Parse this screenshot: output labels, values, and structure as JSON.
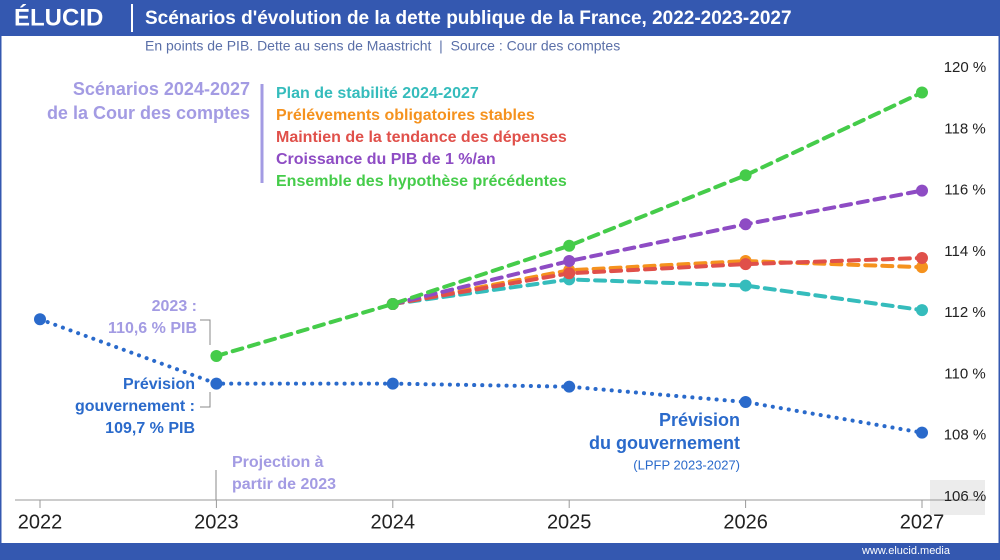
{
  "header": {
    "logo": "ÉLUCID"
  },
  "footer": {
    "url": "www.elucid.media"
  },
  "chart_data": {
    "type": "line",
    "title": "Scénarios d'évolution de la dette publique de la France, 2022-2023-2027",
    "subtitle": "En points de PIB. Dette au sens de Maastricht  |  Source : Cour des comptes",
    "x": [
      2022,
      2023,
      2024,
      2025,
      2026,
      2027
    ],
    "xlim": [
      2022,
      2027
    ],
    "xticks": [
      2022,
      2023,
      2024,
      2025,
      2026,
      2027
    ],
    "ylim": [
      106,
      120
    ],
    "yticks": [
      {
        "value": 106,
        "label": "106 %"
      },
      {
        "value": 108,
        "label": "108 %"
      },
      {
        "value": 110,
        "label": "110 %"
      },
      {
        "value": 112,
        "label": "112 %"
      },
      {
        "value": 114,
        "label": "114 %"
      },
      {
        "value": 116,
        "label": "116 %"
      },
      {
        "value": 118,
        "label": "118 %"
      },
      {
        "value": 120,
        "label": "120 %"
      }
    ],
    "forecast": {
      "color": "#2a6acb",
      "style": "dotted",
      "values": [
        111.8,
        109.7,
        109.7,
        109.6,
        109.1,
        108.1
      ]
    },
    "series": [
      {
        "name": "Plan de stabilité 2024-2027",
        "color": "#35bcbc",
        "style": "dashed",
        "values": [
          null,
          null,
          112.3,
          113.1,
          112.9,
          112.1
        ]
      },
      {
        "name": "Prélévements obligatoires stables",
        "color": "#f5921e",
        "style": "dashed",
        "values": [
          null,
          null,
          112.3,
          113.4,
          113.7,
          113.5
        ]
      },
      {
        "name": "Maintien de la tendance des dépenses",
        "color": "#e0504a",
        "style": "dashed",
        "values": [
          null,
          null,
          112.3,
          113.3,
          113.6,
          113.8
        ]
      },
      {
        "name": "Croissance du PIB de 1 %/an",
        "color": "#8e4cc4",
        "style": "dashed",
        "values": [
          null,
          null,
          112.3,
          113.7,
          114.9,
          116.0
        ]
      },
      {
        "name": "Ensemble des hypothèse précédentes",
        "color": "#45cc4a",
        "style": "dashed",
        "values": [
          null,
          110.6,
          112.3,
          114.2,
          116.5,
          119.2
        ]
      }
    ],
    "annotations": [
      {
        "lines": [
          "Scénarios 2024-2027",
          "de la Cour des comptes"
        ],
        "color": "#a39be3"
      },
      {
        "lines": [
          "2023 :",
          "110,6 % PIB"
        ],
        "color": "#a39be3"
      },
      {
        "lines": [
          "Prévision",
          "gouvernement :",
          "109,7 % PIB"
        ],
        "color": "#2a6acb"
      },
      {
        "lines": [
          "Projection à",
          "partir de 2023"
        ],
        "color": "#a39be3"
      },
      {
        "lines": [
          "Prévision",
          "du gouvernement"
        ],
        "color": "#2a6acb"
      },
      {
        "lines": [
          "(LPFP 2023-2027)"
        ],
        "color": "#2a6acb"
      }
    ]
  }
}
